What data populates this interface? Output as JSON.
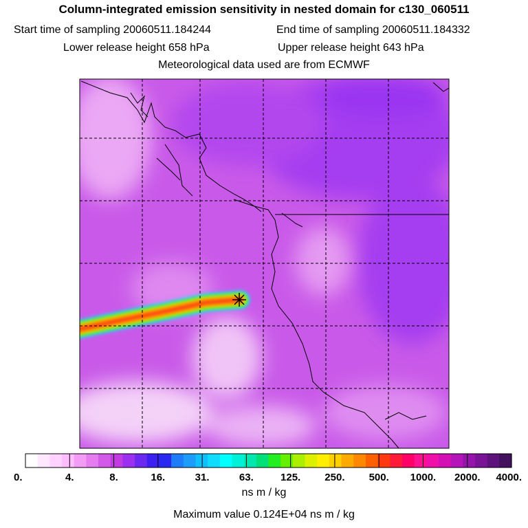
{
  "header": {
    "title": "Column-integrated emission sensitivity in nested domain for c130_060511",
    "start_label": "Start time of sampling 20060511.184244",
    "end_label": "End time of sampling 20060511.184332",
    "lower_label": "Lower release height  658 hPa",
    "upper_label": "Upper release height  643 hPa",
    "met_label": "Meteorological data used are from ECMWF"
  },
  "colors": {
    "background_field": "#c84ee8",
    "coast": "#000000"
  },
  "chart_data": {
    "type": "heatmap",
    "title": "Column-integrated emission sensitivity in nested domain for c130_060511",
    "units": "ns m / kg",
    "maximum_label": "Maximum value  0.124E+04 ns m / kg",
    "colorbar": {
      "tick_labels": [
        "0.",
        "4.",
        "8.",
        "16.",
        "31.",
        "63.",
        "125.",
        "250.",
        "500.",
        "1000.",
        "2000.",
        "4000."
      ],
      "tick_values": [
        0,
        4,
        8,
        16,
        31,
        63,
        125,
        250,
        500,
        1000,
        2000,
        4000
      ],
      "colors": [
        "#ffffff",
        "#ffe8ff",
        "#ffd2ff",
        "#ffbcff",
        "#f39cf5",
        "#e57cf0",
        "#d35ae8",
        "#c23ae2",
        "#9b30f0",
        "#6a28f0",
        "#3c20f2",
        "#2828f0",
        "#1e7cf8",
        "#1e9cfa",
        "#10c0fc",
        "#10dcfe",
        "#00ffff",
        "#00f0d8",
        "#00e8b0",
        "#00e078",
        "#22ee22",
        "#66f000",
        "#aaf000",
        "#dcf000",
        "#ffee00",
        "#ffd000",
        "#ffaa00",
        "#ff8800",
        "#ff6000",
        "#ff3a10",
        "#ff1a3a",
        "#ff0068",
        "#ff1090",
        "#ee10a8",
        "#d410b4",
        "#b414b8",
        "#9614ac",
        "#7a1496",
        "#5e127c",
        "#42105c"
      ]
    },
    "plume": {
      "max_value": 1240,
      "receptor": "star marker at sampling location"
    },
    "grid": true
  }
}
